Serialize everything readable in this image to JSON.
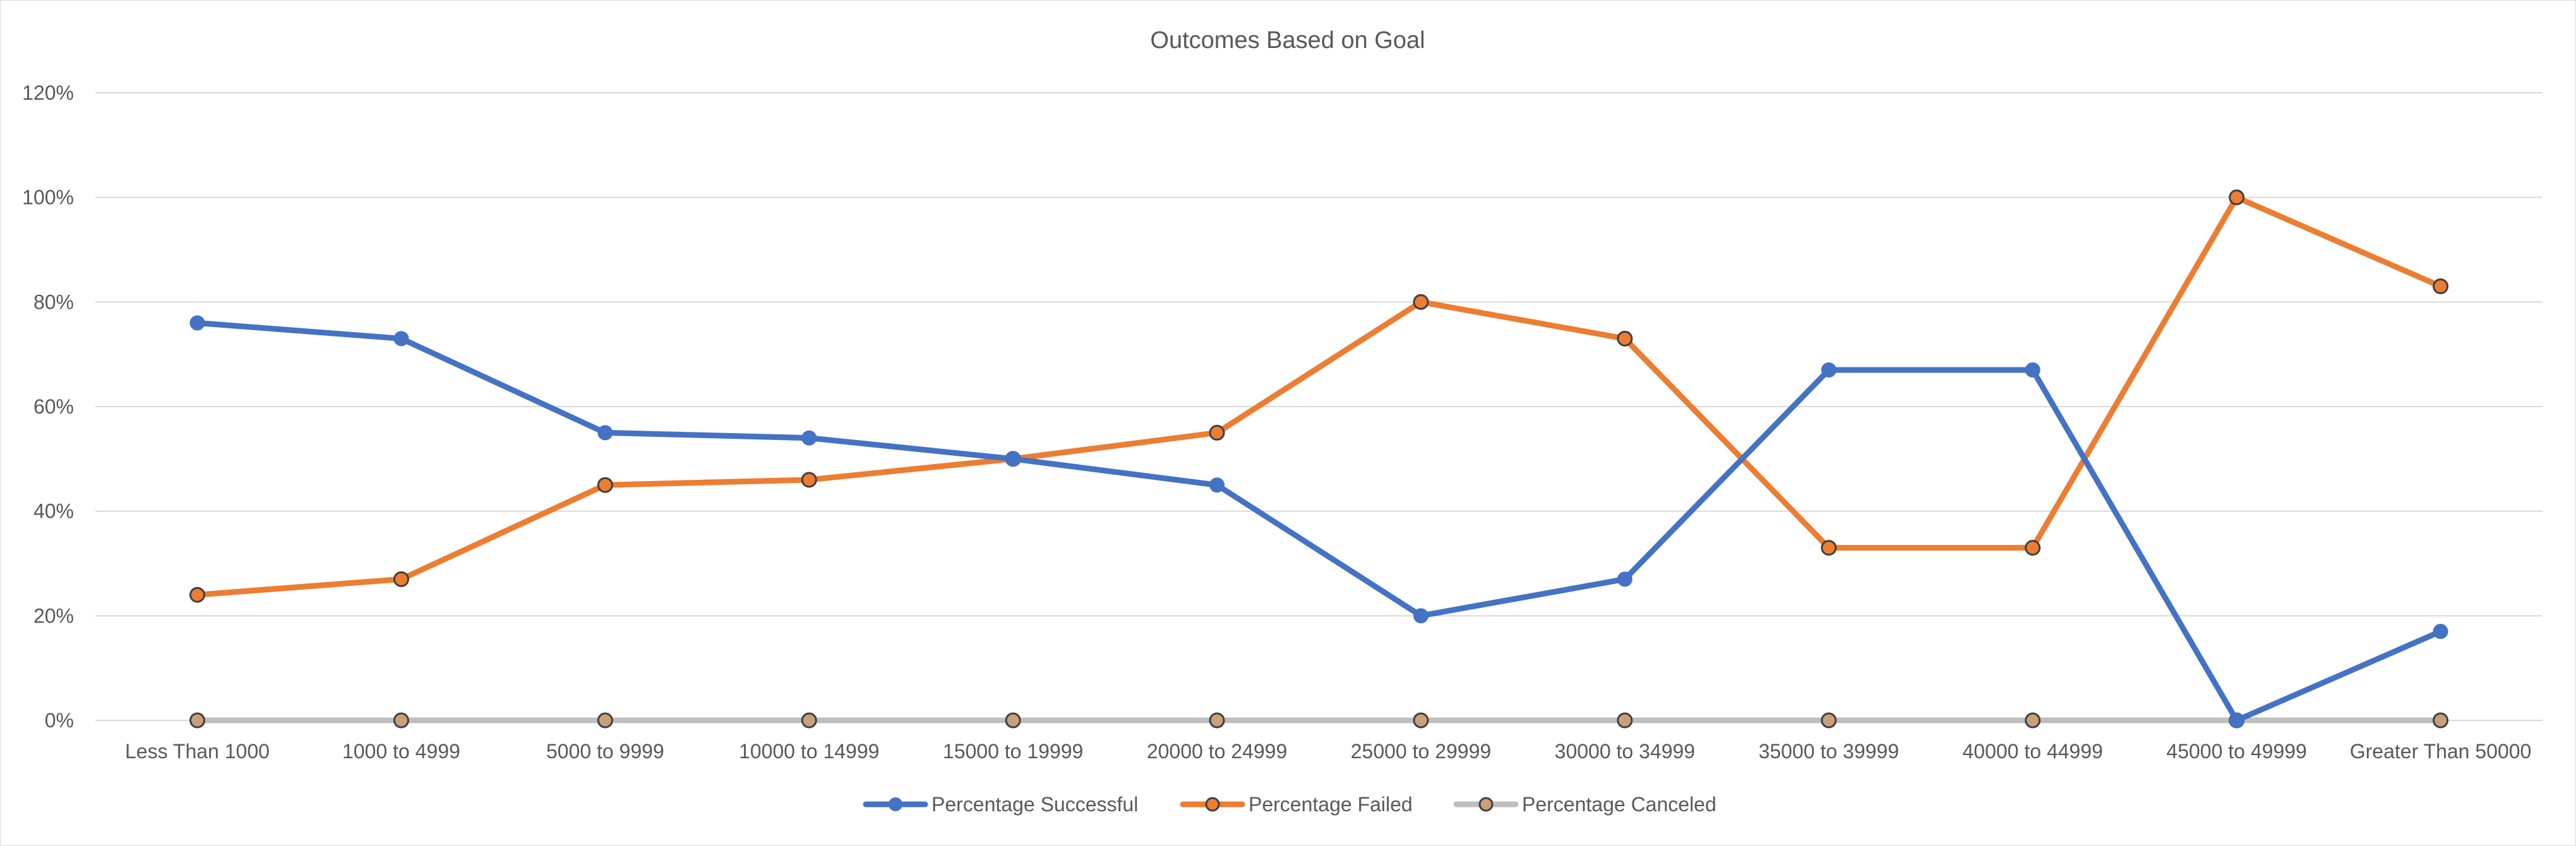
{
  "chart_data": {
    "type": "line",
    "title": "Outcomes Based on Goal",
    "categories": [
      "Less Than 1000",
      "1000 to 4999",
      "5000 to 9999",
      "10000 to 14999",
      "15000 to 19999",
      "20000 to 24999",
      "25000 to 29999",
      "30000 to 34999",
      "35000 to 39999",
      "40000 to 44999",
      "45000 to 49999",
      "Greater Than 50000"
    ],
    "y_ticks": [
      "0%",
      "20%",
      "40%",
      "60%",
      "80%",
      "100%",
      "120%"
    ],
    "ylim": [
      0,
      1.2
    ],
    "grid": true,
    "legend_position": "bottom",
    "series": [
      {
        "name": "Percentage Successful",
        "color": "#4472C4",
        "marker_fill": "#4472C4",
        "values": [
          0.76,
          0.73,
          0.55,
          0.54,
          0.5,
          0.45,
          0.2,
          0.27,
          0.67,
          0.67,
          0.0,
          0.17
        ]
      },
      {
        "name": "Percentage Failed",
        "color": "#ED7D31",
        "marker_fill": "#ED7D31",
        "values": [
          0.24,
          0.27,
          0.45,
          0.46,
          0.5,
          0.55,
          0.8,
          0.73,
          0.33,
          0.33,
          1.0,
          0.83
        ]
      },
      {
        "name": "Percentage Canceled",
        "color": "#BFBFBF",
        "marker_fill": "#C9A07A",
        "values": [
          0,
          0,
          0,
          0,
          0,
          0,
          0,
          0,
          0,
          0,
          0,
          0
        ]
      }
    ]
  }
}
